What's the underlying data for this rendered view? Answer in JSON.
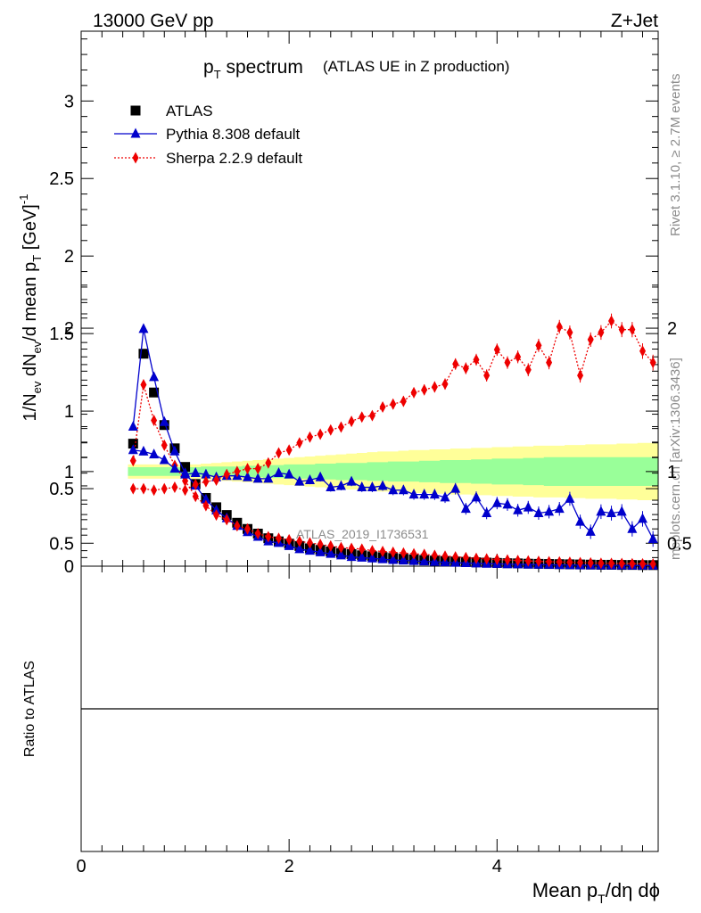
{
  "header": {
    "energy": "13000 GeV pp",
    "process": "Z+Jet"
  },
  "title": {
    "main_prefix": "p",
    "main_sub": "T",
    "main_suffix": " spectrum",
    "detail": "(ATLAS UE in Z production)"
  },
  "side_text": {
    "rivet": "Rivet 3.1.10, ≥ 2.7M events",
    "mcplots": "mcplots.cern.ch [arXiv:1306.3436]"
  },
  "watermark": "ATLAS_2019_I1736531",
  "axes": {
    "ylabel_main": "1/N_ev dN_ev/d mean p_T [GeV]^-1",
    "ylabel_ratio": "Ratio to ATLAS",
    "xlabel": "Mean p_T/dη dϕ",
    "main_yticks": [
      "0",
      "0.5",
      "1",
      "1.5",
      "2",
      "2.5",
      "3"
    ],
    "ratio_yticks": [
      "0.5",
      "1",
      "2"
    ],
    "xticks": [
      "0",
      "2",
      "4"
    ]
  },
  "colors": {
    "data": "#000000",
    "pythia": "#0000cc",
    "sherpa": "#ee0000",
    "band_inner": "#99ff99",
    "band_outer": "#ffff99"
  },
  "chart_data": [
    {
      "type": "scatter",
      "title": "p_T spectrum (ATLAS UE in Z production)",
      "xlabel": "",
      "ylabel": "1/N_ev dN_ev/d mean p_T [GeV]^-1",
      "xlim": [
        0,
        5.55
      ],
      "ylim": [
        0,
        3.45
      ],
      "legend": "top-left",
      "x": [
        0.5,
        0.6,
        0.7,
        0.8,
        0.9,
        1.0,
        1.1,
        1.2,
        1.3,
        1.4,
        1.5,
        1.6,
        1.7,
        1.8,
        1.9,
        2.0,
        2.1,
        2.2,
        2.3,
        2.4,
        2.5,
        2.6,
        2.7,
        2.8,
        2.9,
        3.0,
        3.1,
        3.2,
        3.3,
        3.4,
        3.5,
        3.6,
        3.7,
        3.8,
        3.9,
        4.0,
        4.1,
        4.2,
        4.3,
        4.4,
        4.5,
        4.6,
        4.7,
        4.8,
        4.9,
        5.0,
        5.1,
        5.2,
        5.3,
        5.4,
        5.5
      ],
      "series": [
        {
          "name": "ATLAS",
          "marker": "square",
          "values": [
            0.79,
            1.37,
            1.12,
            0.91,
            0.76,
            0.64,
            0.53,
            0.44,
            0.38,
            0.33,
            0.28,
            0.24,
            0.21,
            0.18,
            0.16,
            0.145,
            0.13,
            0.115,
            0.105,
            0.095,
            0.085,
            0.078,
            0.07,
            0.064,
            0.058,
            0.053,
            0.048,
            0.044,
            0.04,
            0.036,
            0.033,
            0.03,
            0.028,
            0.025,
            0.023,
            0.021,
            0.019,
            0.018,
            0.016,
            0.015,
            0.014,
            0.013,
            0.012,
            0.011,
            0.01,
            0.009,
            0.009,
            0.008,
            0.008,
            0.007,
            0.007
          ]
        },
        {
          "name": "Pythia 8.308 default",
          "marker": "triangle",
          "values": [
            0.9,
            1.53,
            1.22,
            0.93,
            0.74,
            0.6,
            0.52,
            0.43,
            0.36,
            0.31,
            0.26,
            0.22,
            0.19,
            0.16,
            0.15,
            0.13,
            0.11,
            0.1,
            0.09,
            0.08,
            0.07,
            0.06,
            0.055,
            0.05,
            0.045,
            0.04,
            0.037,
            0.034,
            0.031,
            0.028,
            0.025,
            0.022,
            0.02,
            0.018,
            0.016,
            0.015,
            0.013,
            0.012,
            0.011,
            0.01,
            0.009,
            0.008,
            0.007,
            0.006,
            0.006,
            0.005,
            0.005,
            0.005,
            0.004,
            0.004,
            0.004
          ]
        },
        {
          "name": "Sherpa 2.2.9 default",
          "marker": "diamond",
          "values": [
            0.68,
            1.17,
            0.94,
            0.78,
            0.65,
            0.55,
            0.45,
            0.39,
            0.33,
            0.3,
            0.26,
            0.24,
            0.21,
            0.19,
            0.18,
            0.17,
            0.16,
            0.15,
            0.14,
            0.13,
            0.12,
            0.115,
            0.11,
            0.1,
            0.095,
            0.09,
            0.085,
            0.08,
            0.076,
            0.07,
            0.065,
            0.06,
            0.055,
            0.05,
            0.047,
            0.043,
            0.04,
            0.037,
            0.034,
            0.031,
            0.029,
            0.027,
            0.025,
            0.023,
            0.021,
            0.019,
            0.018,
            0.017,
            0.016,
            0.015,
            0.014
          ]
        }
      ]
    },
    {
      "type": "line",
      "title": "",
      "xlabel": "Mean p_T/dη dϕ",
      "ylabel": "Ratio to ATLAS",
      "xlim": [
        0,
        5.55
      ],
      "ylim": [
        0.34,
        2.33
      ],
      "reference_line": 1,
      "x": [
        0.5,
        0.6,
        0.7,
        0.8,
        0.9,
        1.0,
        1.1,
        1.2,
        1.3,
        1.4,
        1.5,
        1.6,
        1.7,
        1.8,
        1.9,
        2.0,
        2.1,
        2.2,
        2.3,
        2.4,
        2.5,
        2.6,
        2.7,
        2.8,
        2.9,
        3.0,
        3.1,
        3.2,
        3.3,
        3.4,
        3.5,
        3.6,
        3.7,
        3.8,
        3.9,
        4.0,
        4.1,
        4.2,
        4.3,
        4.4,
        4.5,
        4.6,
        4.7,
        4.8,
        4.9,
        5.0,
        5.1,
        5.2,
        5.3,
        5.4,
        5.5
      ],
      "series": [
        {
          "name": "Pythia 8.308 default",
          "values": [
            1.15,
            1.14,
            1.12,
            1.08,
            1.02,
            0.98,
            0.99,
            0.98,
            0.96,
            0.97,
            0.97,
            0.96,
            0.95,
            0.95,
            0.99,
            0.98,
            0.93,
            0.94,
            0.96,
            0.89,
            0.9,
            0.93,
            0.89,
            0.89,
            0.9,
            0.87,
            0.87,
            0.84,
            0.84,
            0.84,
            0.82,
            0.88,
            0.74,
            0.82,
            0.71,
            0.78,
            0.77,
            0.73,
            0.75,
            0.71,
            0.72,
            0.74,
            0.81,
            0.65,
            0.58,
            0.72,
            0.71,
            0.72,
            0.6,
            0.67,
            0.53
          ],
          "band_error": [
            0.01,
            0.01,
            0.01,
            0.01,
            0.01,
            0.01,
            0.01,
            0.01,
            0.01,
            0.01,
            0.01,
            0.01,
            0.01,
            0.01,
            0.01,
            0.01,
            0.01,
            0.01,
            0.01,
            0.01,
            0.01,
            0.01,
            0.01,
            0.01,
            0.01,
            0.01,
            0.01,
            0.01,
            0.01,
            0.01,
            0.01,
            0.01,
            0.01,
            0.01,
            0.01,
            0.01,
            0.01,
            0.01,
            0.01,
            0.015,
            0.015,
            0.02,
            0.02,
            0.02,
            0.02,
            0.02,
            0.02,
            0.02,
            0.025,
            0.025,
            0.025
          ]
        },
        {
          "name": "Sherpa 2.2.9 default",
          "values": [
            0.88,
            0.88,
            0.87,
            0.88,
            0.89,
            0.87,
            0.91,
            0.93,
            0.94,
            0.98,
            1.0,
            1.02,
            1.02,
            1.06,
            1.13,
            1.15,
            1.2,
            1.24,
            1.26,
            1.29,
            1.31,
            1.35,
            1.38,
            1.39,
            1.45,
            1.47,
            1.49,
            1.55,
            1.57,
            1.59,
            1.61,
            1.75,
            1.72,
            1.78,
            1.67,
            1.85,
            1.76,
            1.8,
            1.71,
            1.88,
            1.76,
            2.01,
            1.97,
            1.67,
            1.92,
            1.97,
            2.05,
            1.99,
            1.99,
            1.84,
            1.76
          ]
        }
      ],
      "bands": {
        "inner_halfwidth": [
          0.03,
          0.03,
          0.03,
          0.03,
          0.03,
          0.03,
          0.03,
          0.035,
          0.035,
          0.035,
          0.035,
          0.04,
          0.04,
          0.045,
          0.045,
          0.05,
          0.05,
          0.05,
          0.055,
          0.055,
          0.06,
          0.06,
          0.06,
          0.065,
          0.065,
          0.07,
          0.07,
          0.07,
          0.075,
          0.075,
          0.08,
          0.08,
          0.08,
          0.085,
          0.085,
          0.09,
          0.09,
          0.09,
          0.095,
          0.095,
          0.1,
          0.1,
          0.1,
          0.1,
          0.1,
          0.1,
          0.1,
          0.1,
          0.1,
          0.1,
          0.1
        ],
        "outer_halfwidth": [
          0.05,
          0.05,
          0.05,
          0.05,
          0.05,
          0.05,
          0.05,
          0.055,
          0.06,
          0.065,
          0.07,
          0.075,
          0.08,
          0.085,
          0.09,
          0.095,
          0.1,
          0.105,
          0.11,
          0.115,
          0.12,
          0.125,
          0.13,
          0.135,
          0.14,
          0.14,
          0.145,
          0.15,
          0.15,
          0.155,
          0.155,
          0.16,
          0.16,
          0.165,
          0.165,
          0.17,
          0.17,
          0.175,
          0.175,
          0.18,
          0.18,
          0.18,
          0.185,
          0.185,
          0.19,
          0.19,
          0.19,
          0.195,
          0.195,
          0.2,
          0.2
        ]
      }
    }
  ]
}
